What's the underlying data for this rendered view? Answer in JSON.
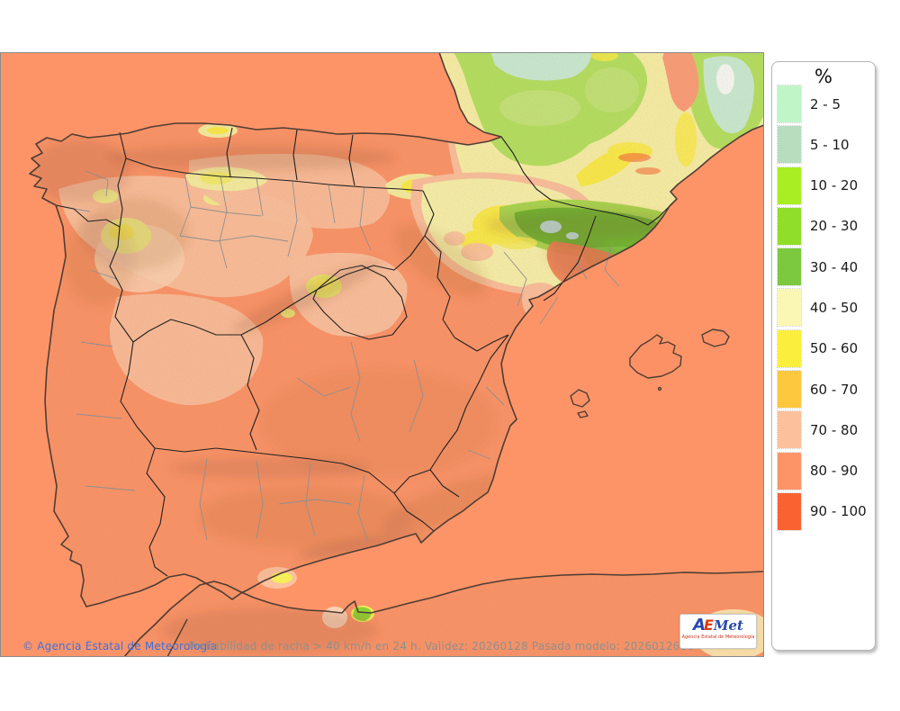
{
  "legend": {
    "title": "%",
    "entries": [
      {
        "label": "2 - 5",
        "color": "#c0f5c8"
      },
      {
        "label": "5 - 10",
        "color": "#b7dcbe"
      },
      {
        "label": "10 - 20",
        "color": "#a8ee22"
      },
      {
        "label": "20 - 30",
        "color": "#90dd2a"
      },
      {
        "label": "30 - 40",
        "color": "#7cc83e"
      },
      {
        "label": "40 - 50",
        "color": "#faf7b4"
      },
      {
        "label": "50 - 60",
        "color": "#fcee3c"
      },
      {
        "label": "60 - 70",
        "color": "#fdc73e"
      },
      {
        "label": "70 - 80",
        "color": "#fcc09c"
      },
      {
        "label": "80 - 90",
        "color": "#fc9468"
      },
      {
        "label": "90 - 100",
        "color": "#fa6232"
      }
    ]
  },
  "footer": {
    "copyright": "© Agencia Estatal de Meteorología",
    "description": "Probabilidad de racha > 40 km/h en 24 h. Validez: 20260128 Pasada modelo: 2026012600"
  },
  "logo": {
    "letter_a": "A",
    "letter_e": "E",
    "letters_met": "Met",
    "subtitle": "Agencia Estatal de Meteorología"
  },
  "map": {
    "sea_color": "#fd9468",
    "dominant_class": "80 - 90",
    "france_green": "#b3e360",
    "pyrenees_green": "#6db82f",
    "yellow_zone": "#fbee48",
    "peach_zone": "#fcc19e"
  }
}
